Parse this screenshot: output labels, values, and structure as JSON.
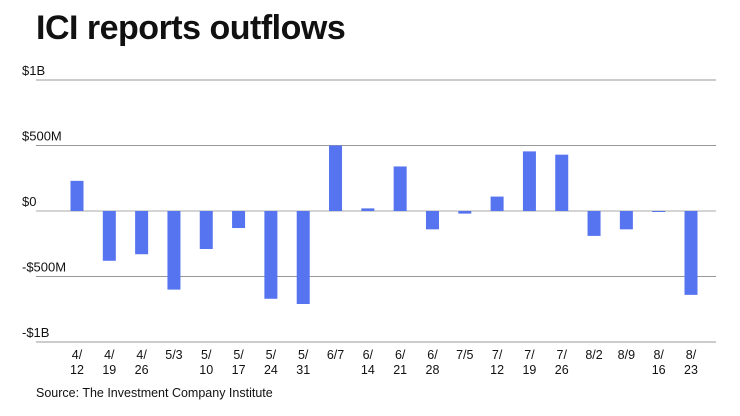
{
  "title": "ICI reports outflows",
  "source": "Source: The Investment Company Institute",
  "colors": {
    "bar": "#5673f0",
    "grid": "#999999",
    "zero": "#aaaaaa",
    "text": "#111111"
  },
  "chart_data": {
    "type": "bar",
    "title": "ICI reports outflows",
    "xlabel": "",
    "ylabel": "",
    "ylim": [
      -1000,
      1000
    ],
    "yticks": [
      1000,
      500,
      0,
      -500,
      -1000
    ],
    "ytick_labels": [
      "$1B",
      "$500M",
      "$0",
      "-$500M",
      "-$1B"
    ],
    "categories": [
      [
        "4/",
        "12"
      ],
      [
        "4/",
        "19"
      ],
      [
        "4/",
        "26"
      ],
      [
        "5/3"
      ],
      [
        "5/",
        "10"
      ],
      [
        "5/",
        "17"
      ],
      [
        "5/",
        "24"
      ],
      [
        "5/",
        "31"
      ],
      [
        "6/7"
      ],
      [
        "6/",
        "14"
      ],
      [
        "6/",
        "21"
      ],
      [
        "6/",
        "28"
      ],
      [
        "7/5"
      ],
      [
        "7/",
        "12"
      ],
      [
        "7/",
        "19"
      ],
      [
        "7/",
        "26"
      ],
      [
        "8/2"
      ],
      [
        "8/9"
      ],
      [
        "8/",
        "16"
      ],
      [
        "8/",
        "23"
      ]
    ],
    "values": [
      230,
      -380,
      -330,
      -600,
      -290,
      -130,
      -670,
      -710,
      500,
      20,
      340,
      -140,
      -20,
      110,
      455,
      430,
      -190,
      -140,
      -5,
      -640
    ],
    "units": "millions of dollars"
  }
}
